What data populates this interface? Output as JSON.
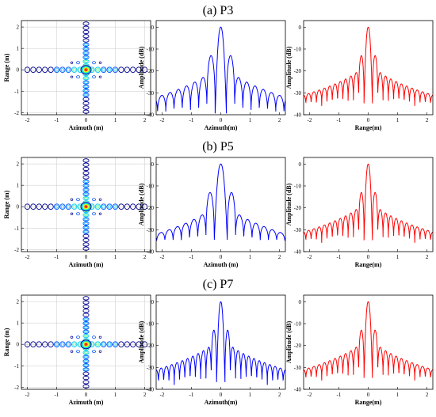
{
  "figure": {
    "rows": [
      {
        "title": "(a) P3"
      },
      {
        "title": "(b) P5"
      },
      {
        "title": "(c) P7"
      }
    ]
  },
  "colors": {
    "azimuth_line": "#0000ff",
    "range_line": "#ff0000",
    "grid": "#c8c8c8",
    "contour_palette": [
      "#00008f",
      "#0050ff",
      "#00c8ff",
      "#40ff80",
      "#ffff00",
      "#ff8000",
      "#ff0000"
    ]
  },
  "chart_data": [
    {
      "id": "a-contour",
      "type": "heatmap",
      "row": 0,
      "xlabel": "Azimuth (m)",
      "ylabel": "Range (m)",
      "xlim": [
        -2.2,
        2.2
      ],
      "ylim": [
        -2.1,
        2.3
      ],
      "xticks": [
        -2,
        -1,
        0,
        1,
        2
      ],
      "yticks": [
        -2,
        -1,
        0,
        1,
        2
      ]
    },
    {
      "id": "a-azimuth",
      "type": "line",
      "row": 0,
      "xlabel": "Azimuth(m)",
      "ylabel": "Amplitude (dB)",
      "xlim": [
        -2.2,
        2.2
      ],
      "ylim": [
        -40,
        3
      ],
      "xticks": [
        -2,
        -1,
        0,
        1,
        2
      ],
      "yticks": [
        0,
        -10,
        -20,
        -30,
        -40
      ],
      "series": [
        {
          "color_key": "azimuth_line",
          "peak": 0,
          "lobe_width": 0.28,
          "mainlobe_halfwidth": 0.12,
          "envelope": [
            -13,
            -32
          ],
          "first_lobes": -13,
          "nulls": -40
        }
      ]
    },
    {
      "id": "a-range",
      "type": "line",
      "row": 0,
      "xlabel": "Range(m)",
      "ylabel": "Amplitude (dB)",
      "xlim": [
        -2.2,
        2.2
      ],
      "ylim": [
        -40,
        3
      ],
      "xticks": [
        -2,
        -1,
        0,
        1,
        2
      ],
      "yticks": [
        0,
        -10,
        -20,
        -30,
        -40
      ],
      "series": [
        {
          "color_key": "range_line",
          "peak": 0,
          "lobe_width": 0.18,
          "mainlobe_halfwidth": 0.09,
          "envelope": [
            -13,
            -31
          ],
          "first_lobes": -13,
          "nulls": -36
        }
      ]
    },
    {
      "id": "b-contour",
      "type": "heatmap",
      "row": 1,
      "xlabel": "Azimuth (m)",
      "ylabel": "Range (m)",
      "xlim": [
        -2.2,
        2.2
      ],
      "ylim": [
        -2.1,
        2.3
      ],
      "xticks": [
        -2,
        -1,
        0,
        1,
        2
      ],
      "yticks": [
        -2,
        -1,
        0,
        1,
        2
      ]
    },
    {
      "id": "b-azimuth",
      "type": "line",
      "row": 1,
      "xlabel": "Azimuth (m)",
      "ylabel": "Amplitude (dB)",
      "xlim": [
        -2.2,
        2.2
      ],
      "ylim": [
        -40,
        3
      ],
      "xticks": [
        -2,
        -1,
        0,
        1,
        2
      ],
      "yticks": [
        0,
        -10,
        -20,
        -30,
        -40
      ],
      "series": [
        {
          "color_key": "azimuth_line",
          "peak": 0,
          "lobe_width": 0.28,
          "mainlobe_halfwidth": 0.14,
          "envelope": [
            -13,
            -32
          ],
          "first_lobes": -13,
          "nulls": -36
        }
      ]
    },
    {
      "id": "b-range",
      "type": "line",
      "row": 1,
      "xlabel": "Range(m)",
      "ylabel": "Amplitude (dB)",
      "xlim": [
        -2.2,
        2.2
      ],
      "ylim": [
        -40,
        3
      ],
      "xticks": [
        -2,
        -1,
        0,
        1,
        2
      ],
      "yticks": [
        0,
        -10,
        -20,
        -30,
        -40
      ],
      "series": [
        {
          "color_key": "range_line",
          "peak": 0,
          "lobe_width": 0.18,
          "mainlobe_halfwidth": 0.09,
          "envelope": [
            -13,
            -31
          ],
          "first_lobes": -13,
          "nulls": -36
        }
      ]
    },
    {
      "id": "c-contour",
      "type": "heatmap",
      "row": 2,
      "xlabel": "Azimuth (m)",
      "ylabel": "Range (m)",
      "xlim": [
        -2.2,
        2.2
      ],
      "ylim": [
        -2.1,
        2.3
      ],
      "xticks": [
        -2,
        -1,
        0,
        1,
        2
      ],
      "yticks": [
        -2,
        -1,
        0,
        1,
        2
      ]
    },
    {
      "id": "c-azimuth",
      "type": "line",
      "row": 2,
      "xlabel": "Azimuth(m)",
      "ylabel": "Amplitude (dB)",
      "xlim": [
        -2.2,
        2.2
      ],
      "ylim": [
        -40,
        3
      ],
      "xticks": [
        -2,
        -1,
        0,
        1,
        2
      ],
      "yticks": [
        0,
        -10,
        -20,
        -30,
        -40
      ],
      "series": [
        {
          "color_key": "azimuth_line",
          "peak": 0,
          "lobe_width": 0.18,
          "mainlobe_halfwidth": 0.09,
          "envelope": [
            -13,
            -31
          ],
          "first_lobes": -13,
          "nulls": -38
        }
      ]
    },
    {
      "id": "c-range",
      "type": "line",
      "row": 2,
      "xlabel": "Range(m)",
      "ylabel": "Amplitude (dB)",
      "xlim": [
        -2.2,
        2.2
      ],
      "ylim": [
        -40,
        3
      ],
      "xticks": [
        -2,
        -1,
        0,
        1,
        2
      ],
      "yticks": [
        0,
        -10,
        -20,
        -30,
        -40
      ],
      "series": [
        {
          "color_key": "range_line",
          "peak": 0,
          "lobe_width": 0.18,
          "mainlobe_halfwidth": 0.09,
          "envelope": [
            -13,
            -31
          ],
          "first_lobes": -13,
          "nulls": -36
        }
      ]
    }
  ]
}
